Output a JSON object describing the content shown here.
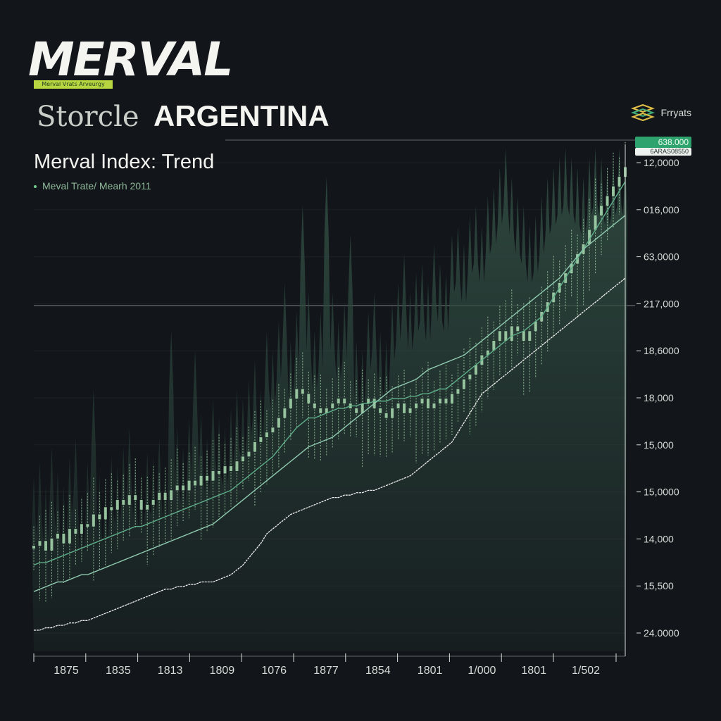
{
  "header": {
    "logo_text": "MERVAL",
    "logo_tag": "Merval Vrats Arveurgy",
    "brand_prefix": "Storcle",
    "brand_country": "ARGENTINA"
  },
  "chart_header": {
    "title": "Merval Index: Trend",
    "subtitle": "Meval Trate/ Mearh 2011"
  },
  "legend": {
    "label": "Frryats",
    "icon": "layers-icon"
  },
  "price_badge": {
    "value": "638.000",
    "sub_value": "6ARAS08550"
  },
  "colors": {
    "background": "#12161a",
    "area_fill": "#2f4a40",
    "candle": "#a7d8ae",
    "line_ma_fast": "#5fae8a",
    "line_ma_slow": "#8fcab0",
    "line_trend": "#f0f0f0",
    "badge": "#2ea36e"
  },
  "chart_data": {
    "type": "line",
    "title": "Merval Index: Trend",
    "y_tick_labels": [
      "12,0000",
      "016,000",
      "63,0000",
      "217,000",
      "18,6000",
      "18,000",
      "15,000",
      "15,0000",
      "14,000",
      "15,500",
      "24.0000"
    ],
    "x_tick_labels": [
      "1875",
      "1835",
      "1813",
      "1809",
      "1076",
      "1877",
      "1854",
      "1801",
      "1/000",
      "1801",
      "1/502"
    ],
    "grid": true,
    "legend_position": "top-right",
    "x_index": [
      0,
      1,
      2,
      3,
      4,
      5,
      6,
      7,
      8,
      9,
      10,
      11,
      12,
      13,
      14,
      15,
      16,
      17,
      18,
      19,
      20,
      21,
      22,
      23,
      24,
      25,
      26,
      27,
      28,
      29,
      30,
      31,
      32,
      33,
      34,
      35,
      36,
      37,
      38,
      39,
      40,
      41,
      42,
      43,
      44,
      45,
      46,
      47,
      48,
      49,
      50,
      51,
      52,
      53,
      54,
      55,
      56,
      57,
      58,
      59,
      60,
      61,
      62,
      63,
      64,
      65,
      66,
      67,
      68,
      69,
      70,
      71,
      72,
      73,
      74,
      75,
      76,
      77,
      78,
      79,
      80,
      81,
      82,
      83,
      84,
      85,
      86,
      87,
      88,
      89,
      90,
      91,
      92,
      93,
      94,
      95,
      96,
      97,
      98,
      99
    ],
    "series": [
      {
        "role": "candle_close",
        "values": [
          0.175,
          0.185,
          0.165,
          0.19,
          0.2,
          0.18,
          0.21,
          0.2,
          0.22,
          0.215,
          0.24,
          0.23,
          0.255,
          0.25,
          0.27,
          0.26,
          0.28,
          0.27,
          0.25,
          0.26,
          0.27,
          0.285,
          0.27,
          0.29,
          0.3,
          0.29,
          0.31,
          0.3,
          0.32,
          0.31,
          0.33,
          0.325,
          0.34,
          0.33,
          0.35,
          0.36,
          0.37,
          0.39,
          0.4,
          0.41,
          0.42,
          0.44,
          0.46,
          0.48,
          0.5,
          0.49,
          0.47,
          0.46,
          0.45,
          0.46,
          0.47,
          0.48,
          0.47,
          0.46,
          0.45,
          0.47,
          0.48,
          0.46,
          0.45,
          0.44,
          0.46,
          0.47,
          0.45,
          0.46,
          0.47,
          0.48,
          0.46,
          0.47,
          0.48,
          0.47,
          0.49,
          0.5,
          0.52,
          0.53,
          0.55,
          0.57,
          0.58,
          0.6,
          0.62,
          0.6,
          0.63,
          0.62,
          0.6,
          0.62,
          0.64,
          0.66,
          0.68,
          0.7,
          0.72,
          0.74,
          0.76,
          0.78,
          0.8,
          0.83,
          0.86,
          0.88,
          0.9,
          0.92,
          0.94,
          0.96
        ]
      },
      {
        "role": "area_peaks",
        "values": [
          0.32,
          0.35,
          0.3,
          0.38,
          0.33,
          0.3,
          0.36,
          0.4,
          0.28,
          0.35,
          0.5,
          0.32,
          0.3,
          0.36,
          0.34,
          0.38,
          0.42,
          0.35,
          0.33,
          0.37,
          0.36,
          0.4,
          0.34,
          0.62,
          0.42,
          0.38,
          0.44,
          0.58,
          0.45,
          0.4,
          0.48,
          0.44,
          0.42,
          0.46,
          0.5,
          0.48,
          0.52,
          0.56,
          0.5,
          0.62,
          0.58,
          0.64,
          0.72,
          0.6,
          0.66,
          0.88,
          0.7,
          0.62,
          0.66,
          0.94,
          0.7,
          0.64,
          0.68,
          0.82,
          0.6,
          0.58,
          0.66,
          0.7,
          0.62,
          0.6,
          0.68,
          0.72,
          0.78,
          0.7,
          0.74,
          0.76,
          0.72,
          0.8,
          0.76,
          0.74,
          0.82,
          0.84,
          0.8,
          0.86,
          0.88,
          0.84,
          0.9,
          0.92,
          0.96,
          1.0,
          0.94,
          0.9,
          0.88,
          0.84,
          0.86,
          0.9,
          0.94,
          0.96,
          0.98,
          1.0,
          0.98,
          0.96,
          0.94,
          0.98,
          1.0,
          0.98,
          0.96,
          0.98,
          1.0,
          0.98
        ]
      },
      {
        "role": "moving_average_fast",
        "values": [
          0.135,
          0.14,
          0.14,
          0.145,
          0.15,
          0.155,
          0.16,
          0.165,
          0.17,
          0.175,
          0.18,
          0.185,
          0.19,
          0.195,
          0.2,
          0.205,
          0.21,
          0.215,
          0.215,
          0.22,
          0.225,
          0.23,
          0.235,
          0.24,
          0.245,
          0.25,
          0.255,
          0.26,
          0.265,
          0.27,
          0.275,
          0.28,
          0.285,
          0.29,
          0.3,
          0.31,
          0.32,
          0.33,
          0.34,
          0.35,
          0.36,
          0.375,
          0.39,
          0.405,
          0.42,
          0.43,
          0.44,
          0.44,
          0.445,
          0.45,
          0.455,
          0.46,
          0.46,
          0.465,
          0.465,
          0.47,
          0.47,
          0.475,
          0.475,
          0.475,
          0.48,
          0.48,
          0.48,
          0.485,
          0.485,
          0.49,
          0.49,
          0.495,
          0.5,
          0.5,
          0.51,
          0.52,
          0.53,
          0.54,
          0.55,
          0.56,
          0.57,
          0.58,
          0.59,
          0.6,
          0.61,
          0.615,
          0.62,
          0.63,
          0.64,
          0.65,
          0.67,
          0.69,
          0.71,
          0.73,
          0.75,
          0.77,
          0.79,
          0.81,
          0.83,
          0.85,
          0.87,
          0.89,
          0.91,
          0.93
        ]
      },
      {
        "role": "moving_average_slow",
        "values": [
          0.08,
          0.085,
          0.09,
          0.095,
          0.1,
          0.1,
          0.105,
          0.11,
          0.115,
          0.115,
          0.12,
          0.125,
          0.13,
          0.135,
          0.14,
          0.145,
          0.15,
          0.155,
          0.16,
          0.165,
          0.17,
          0.175,
          0.18,
          0.185,
          0.19,
          0.195,
          0.2,
          0.205,
          0.21,
          0.215,
          0.22,
          0.23,
          0.24,
          0.25,
          0.26,
          0.27,
          0.28,
          0.29,
          0.3,
          0.31,
          0.32,
          0.33,
          0.34,
          0.35,
          0.36,
          0.37,
          0.38,
          0.385,
          0.39,
          0.395,
          0.4,
          0.41,
          0.42,
          0.43,
          0.44,
          0.45,
          0.46,
          0.47,
          0.48,
          0.49,
          0.5,
          0.505,
          0.51,
          0.515,
          0.52,
          0.53,
          0.54,
          0.545,
          0.55,
          0.555,
          0.56,
          0.565,
          0.57,
          0.58,
          0.59,
          0.6,
          0.61,
          0.62,
          0.63,
          0.64,
          0.65,
          0.66,
          0.67,
          0.68,
          0.69,
          0.7,
          0.71,
          0.72,
          0.73,
          0.745,
          0.76,
          0.775,
          0.79,
          0.8,
          0.81,
          0.82,
          0.83,
          0.84,
          0.85,
          0.86
        ]
      },
      {
        "role": "long_trend",
        "values": [
          0.0,
          0.0,
          0.005,
          0.005,
          0.01,
          0.01,
          0.015,
          0.015,
          0.02,
          0.02,
          0.025,
          0.03,
          0.035,
          0.04,
          0.045,
          0.05,
          0.055,
          0.06,
          0.065,
          0.07,
          0.075,
          0.08,
          0.085,
          0.085,
          0.09,
          0.09,
          0.095,
          0.095,
          0.1,
          0.1,
          0.1,
          0.105,
          0.11,
          0.115,
          0.125,
          0.135,
          0.15,
          0.165,
          0.18,
          0.2,
          0.21,
          0.22,
          0.23,
          0.24,
          0.245,
          0.25,
          0.255,
          0.26,
          0.265,
          0.27,
          0.275,
          0.275,
          0.28,
          0.28,
          0.285,
          0.285,
          0.29,
          0.29,
          0.295,
          0.3,
          0.305,
          0.31,
          0.315,
          0.32,
          0.33,
          0.34,
          0.35,
          0.36,
          0.37,
          0.38,
          0.39,
          0.41,
          0.43,
          0.45,
          0.47,
          0.49,
          0.5,
          0.51,
          0.52,
          0.53,
          0.54,
          0.55,
          0.56,
          0.57,
          0.58,
          0.59,
          0.6,
          0.61,
          0.62,
          0.63,
          0.64,
          0.65,
          0.66,
          0.67,
          0.68,
          0.69,
          0.7,
          0.71,
          0.72,
          0.73
        ]
      }
    ]
  }
}
